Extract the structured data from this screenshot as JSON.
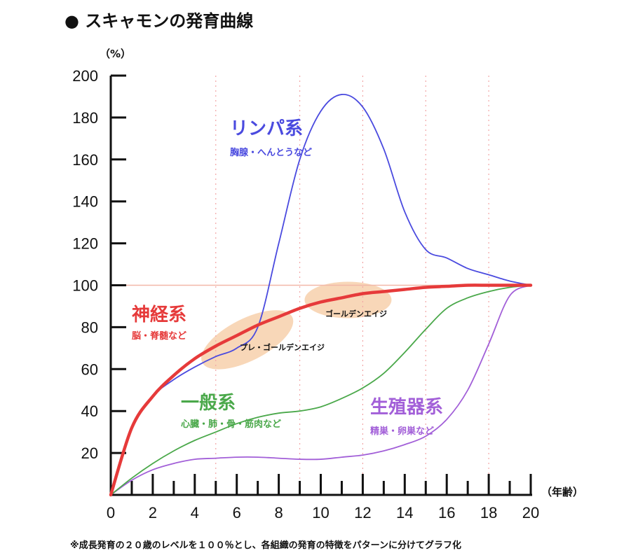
{
  "page_title": "● スキャモンの発育曲線",
  "footnote": "※成長発育の２０歳のレベルを１００％とし、各組織の発育の特徴をパターンに分けてグラフ化",
  "chart_data": {
    "type": "line",
    "title": "スキャモンの発育曲線",
    "ylabel": "（%）",
    "xlabel": "（年齢）",
    "xlim": [
      0,
      20
    ],
    "ylim": [
      0,
      200
    ],
    "xticks": [
      0,
      2,
      4,
      6,
      8,
      10,
      12,
      14,
      16,
      18,
      20
    ],
    "yticks": [
      20,
      40,
      60,
      80,
      100,
      120,
      140,
      160,
      180,
      200
    ],
    "reference_line": 100,
    "colors": {
      "lymph": "#4a4adf",
      "neural": "#e63a3a",
      "general": "#4aa84a",
      "reproductive": "#a25fd8",
      "reference": "#f2b8a8",
      "highlight": "#f5c9a0",
      "grid": "#f2a5a5"
    },
    "series": [
      {
        "key": "lymph",
        "name": "リンパ系",
        "subtitle": "胸腺・へんとうなど",
        "x": [
          0,
          1,
          2,
          3,
          4,
          5,
          6,
          7,
          8,
          9,
          10,
          11,
          12,
          13,
          14,
          15,
          16,
          17,
          18,
          19,
          20
        ],
        "values": [
          0,
          32,
          47,
          55,
          61,
          66,
          70,
          80,
          120,
          160,
          183,
          191,
          185,
          165,
          135,
          117,
          113,
          108,
          105,
          102,
          100
        ]
      },
      {
        "key": "neural",
        "name": "神経系",
        "subtitle": "脳・脊髄など",
        "x": [
          0,
          1,
          2,
          3,
          4,
          5,
          6,
          7,
          8,
          9,
          10,
          11,
          12,
          13,
          14,
          15,
          16,
          17,
          18,
          19,
          20
        ],
        "values": [
          0,
          32,
          47,
          57,
          65,
          71,
          76,
          81,
          85,
          89,
          92,
          94,
          96,
          97,
          98,
          99,
          99.5,
          100,
          100,
          100,
          100
        ]
      },
      {
        "key": "general",
        "name": "一般系",
        "subtitle": "心臓・肺・骨・筋肉など",
        "x": [
          0,
          1,
          2,
          3,
          4,
          5,
          6,
          7,
          8,
          9,
          10,
          11,
          12,
          13,
          14,
          15,
          16,
          17,
          18,
          19,
          20
        ],
        "values": [
          0,
          8,
          15,
          21,
          26,
          30,
          34,
          37,
          39,
          40,
          42,
          46,
          51,
          58,
          68,
          79,
          89,
          94,
          97,
          99,
          100
        ]
      },
      {
        "key": "reproductive",
        "name": "生殖器系",
        "subtitle": "精巣・卵巣など",
        "x": [
          0,
          1,
          2,
          3,
          4,
          5,
          6,
          7,
          8,
          9,
          10,
          11,
          12,
          13,
          14,
          15,
          16,
          17,
          18,
          19,
          20
        ],
        "values": [
          0,
          7,
          12,
          15,
          17,
          17.5,
          18,
          18,
          17.5,
          17,
          17,
          18,
          19,
          21,
          24,
          28,
          36,
          50,
          72,
          95,
          100
        ]
      }
    ],
    "annotations": [
      {
        "key": "pre_golden",
        "text": "プレ・ゴールデンエイジ",
        "x": 6.8,
        "y": 70
      },
      {
        "key": "golden",
        "text": "ゴールデンエイジ",
        "x": 11,
        "y": 93
      }
    ]
  }
}
